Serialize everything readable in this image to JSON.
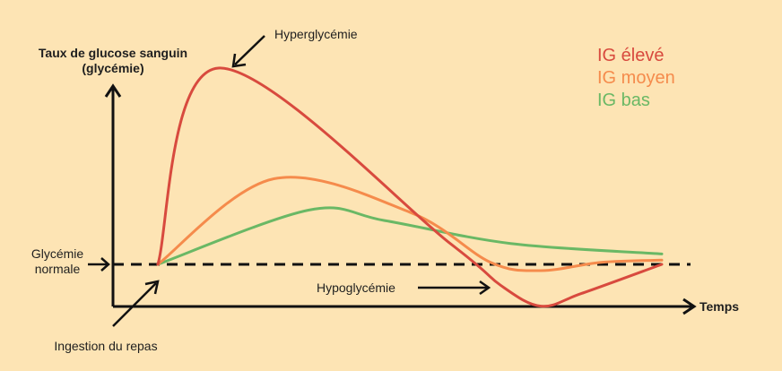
{
  "chart_data": {
    "type": "line",
    "ylabel_line1": "Taux de glucose sanguin",
    "ylabel_line2": "(glycémie)",
    "xlabel": "Temps",
    "annotations": {
      "hyper": "Hyperglycémie",
      "hypo": "Hypoglycémie",
      "normal_line1": "Glycémie",
      "normal_line2": "normale",
      "meal": "Ingestion du repas"
    },
    "baseline": 0,
    "series": [
      {
        "name": "IG élevé",
        "color": "#d84a3e",
        "points": [
          [
            0,
            0
          ],
          [
            0.12,
            0.94
          ],
          [
            0.58,
            0.1
          ],
          [
            0.68,
            -0.1
          ],
          [
            0.76,
            -0.2
          ],
          [
            0.84,
            -0.14
          ],
          [
            1,
            0
          ]
        ]
      },
      {
        "name": "IG moyen",
        "color": "#f58b4c",
        "points": [
          [
            0,
            0
          ],
          [
            0.23,
            0.41
          ],
          [
            0.5,
            0.25
          ],
          [
            0.66,
            0.01
          ],
          [
            0.76,
            -0.03
          ],
          [
            0.88,
            0.01
          ],
          [
            1,
            0.02
          ]
        ]
      },
      {
        "name": "IG bas",
        "color": "#6ab865",
        "points": [
          [
            0,
            0
          ],
          [
            0.3,
            0.26
          ],
          [
            0.45,
            0.21
          ],
          [
            0.7,
            0.1
          ],
          [
            1,
            0.05
          ]
        ]
      }
    ]
  }
}
